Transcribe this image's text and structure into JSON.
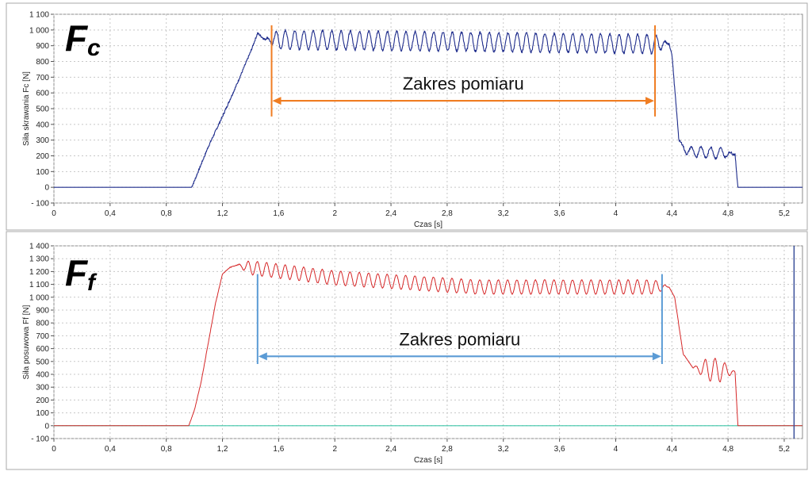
{
  "chart_data": [
    {
      "type": "line",
      "id": "fc",
      "symbol": "F",
      "symbol_sub": "c",
      "title": "",
      "xlabel": "Czas [s]",
      "ylabel": "Siła skrawania Fc [N]",
      "xlim": [
        0,
        5.33
      ],
      "ylim": [
        -100,
        1100
      ],
      "xticks": [
        0,
        0.4,
        0.8,
        1.2,
        1.6,
        2,
        2.4,
        2.8,
        3.2,
        3.6,
        4,
        4.4,
        4.8,
        5.2
      ],
      "xtick_labels": [
        "0",
        "0,4",
        "0,8",
        "1,2",
        "1,6",
        "2",
        "2,4",
        "2,8",
        "3,2",
        "3,6",
        "4",
        "4,4",
        "4,8",
        "5,2"
      ],
      "yticks": [
        -100,
        0,
        100,
        200,
        300,
        400,
        500,
        600,
        700,
        800,
        900,
        1000,
        1100
      ],
      "ytick_labels": [
        "- 100",
        "0",
        "100",
        "200",
        "300",
        "400",
        "500",
        "600",
        "700",
        "800",
        "900",
        "1 000",
        "1 100"
      ],
      "grid": true,
      "line_color": "#1f2d8c",
      "range_color": "#f07d22",
      "series": [
        {
          "name": "Fc",
          "x": [
            0,
            0.98,
            1.0,
            1.1,
            1.2,
            1.3,
            1.4,
            1.45,
            1.5,
            4.38,
            4.4,
            4.45,
            4.5,
            4.85,
            4.87,
            5.33
          ],
          "y": [
            0,
            0,
            40,
            260,
            450,
            650,
            860,
            980,
            940,
            910,
            850,
            300,
            230,
            210,
            0,
            0
          ],
          "oscillation": {
            "from": 1.5,
            "to": 4.38,
            "period": 0.066,
            "amplitude": 60
          },
          "tail_oscillation": {
            "from": 4.45,
            "to": 4.85,
            "period": 0.07,
            "amplitude": 35
          }
        }
      ],
      "annotations": [
        {
          "type": "range",
          "x_start": 1.55,
          "x_end": 4.28,
          "y": 550,
          "label": "Zakres pomiaru",
          "line_top": 1030,
          "line_bottom": 450
        }
      ]
    },
    {
      "type": "line",
      "id": "ff",
      "symbol": "F",
      "symbol_sub": "f",
      "title": "",
      "xlabel": "Czas [s]",
      "ylabel": "Siła posuwowa Ff [N]",
      "xlim": [
        0,
        5.33
      ],
      "ylim": [
        -100,
        1400
      ],
      "xticks": [
        0,
        0.4,
        0.8,
        1.2,
        1.6,
        2,
        2.4,
        2.8,
        3.2,
        3.6,
        4,
        4.4,
        4.8,
        5.2
      ],
      "xtick_labels": [
        "0",
        "0,4",
        "0,8",
        "1,2",
        "1,6",
        "2",
        "2,4",
        "2,8",
        "3,2",
        "3,6",
        "4",
        "4,4",
        "4,8",
        "5,2"
      ],
      "yticks": [
        -100,
        0,
        100,
        200,
        300,
        400,
        500,
        600,
        700,
        800,
        900,
        1000,
        1100,
        1200,
        1300,
        1400
      ],
      "ytick_labels": [
        "- 100",
        "0",
        "100",
        "200",
        "300",
        "400",
        "500",
        "600",
        "700",
        "800",
        "900",
        "1 000",
        "1 100",
        "1 200",
        "1 300",
        "1 400"
      ],
      "grid": true,
      "line_color": "#d62728",
      "baseline_color": "#3ec6a8",
      "cursor_color": "#3a4f9a",
      "cursor_x": 5.27,
      "range_color": "#5b9bd5",
      "series": [
        {
          "name": "Ff",
          "x": [
            0,
            0.96,
            1.0,
            1.05,
            1.1,
            1.15,
            1.2,
            1.25,
            1.3,
            1.4,
            2.0,
            3.0,
            4.0,
            4.38,
            4.42,
            4.48,
            4.55,
            4.85,
            4.87
          ],
          "y": [
            0,
            0,
            120,
            350,
            650,
            950,
            1180,
            1230,
            1250,
            1230,
            1150,
            1080,
            1080,
            1080,
            1000,
            560,
            450,
            420,
            0
          ],
          "oscillation": {
            "from": 1.3,
            "to": 4.38,
            "period": 0.066,
            "amplitude": 55
          },
          "tail_oscillation": {
            "from": 4.55,
            "to": 4.85,
            "period": 0.07,
            "amplitude": 90
          }
        }
      ],
      "annotations": [
        {
          "type": "range",
          "x_start": 1.45,
          "x_end": 4.33,
          "y": 540,
          "label": "Zakres pomiaru",
          "line_top": 1180,
          "line_bottom": 480
        }
      ]
    }
  ]
}
